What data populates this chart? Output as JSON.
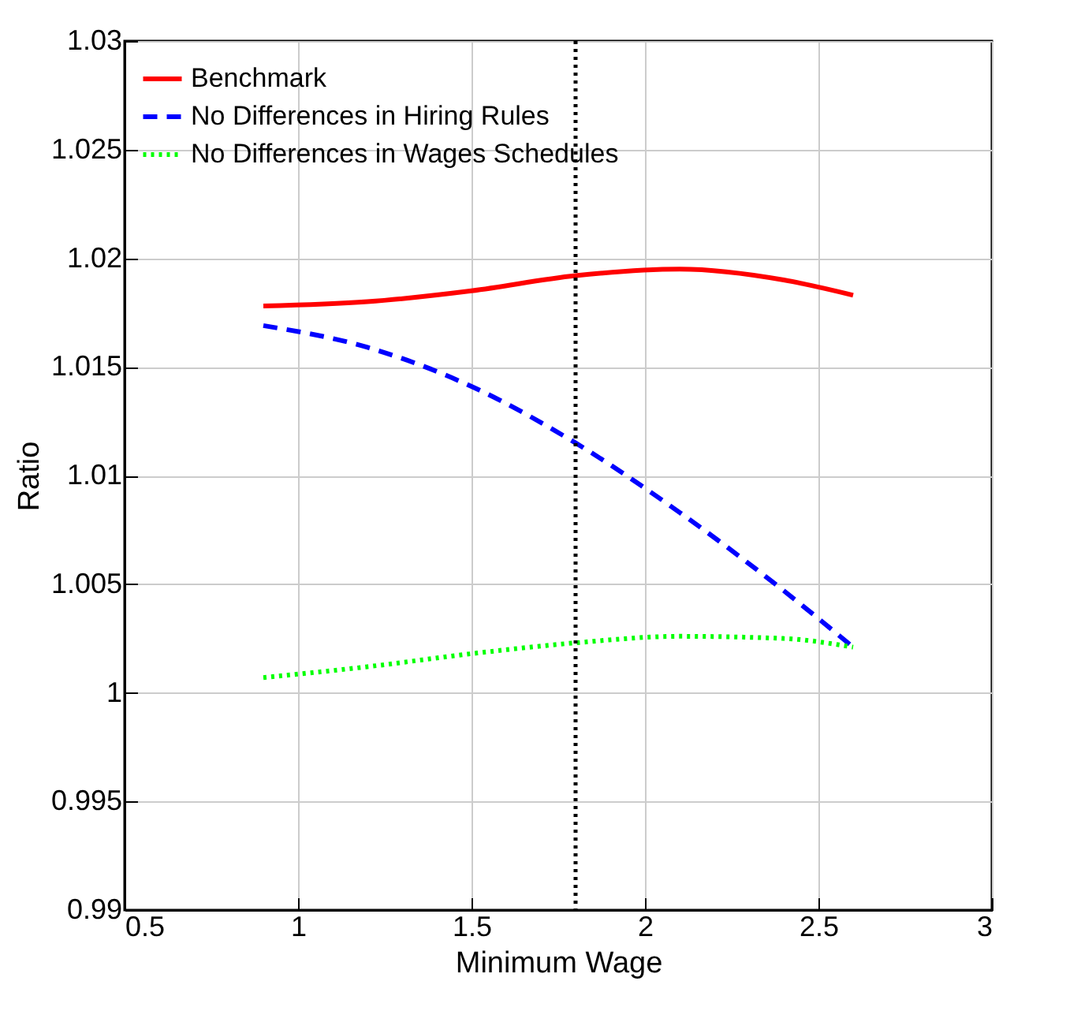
{
  "chart_data": {
    "type": "line",
    "xlabel": "Minimum Wage",
    "ylabel": "Ratio",
    "xlim": [
      0.5,
      3
    ],
    "ylim": [
      0.99,
      1.03
    ],
    "xticks": [
      0.5,
      1,
      1.5,
      2,
      2.5,
      3
    ],
    "yticks": [
      0.99,
      0.995,
      1,
      1.005,
      1.01,
      1.015,
      1.02,
      1.025,
      1.03
    ],
    "grid": true,
    "legend": "top left",
    "x": [
      0.9,
      1.2,
      1.5,
      1.8,
      2.1,
      2.4,
      2.6
    ],
    "series": [
      {
        "name": "Benchmark",
        "color": "#ff0000",
        "line_style": "solid",
        "values": [
          1.0178,
          1.018,
          1.0185,
          1.0192,
          1.0195,
          1.019,
          1.0183
        ]
      },
      {
        "name": "No Differences in Hiring Rules",
        "color": "#0000ff",
        "line_style": "dashed",
        "values": [
          1.0169,
          1.0159,
          1.0141,
          1.0115,
          1.0083,
          1.0047,
          1.0021
        ]
      },
      {
        "name": "No Differences in Wages Schedules",
        "color": "#00ff00",
        "line_style": "dotted",
        "values": [
          1.0007,
          1.0012,
          1.0018,
          1.0023,
          1.0026,
          1.0025,
          1.0021
        ]
      }
    ],
    "ref_lines": [
      {
        "axis": "x",
        "value": 1.8,
        "color": "#000000",
        "line_style": "dotted"
      }
    ]
  }
}
